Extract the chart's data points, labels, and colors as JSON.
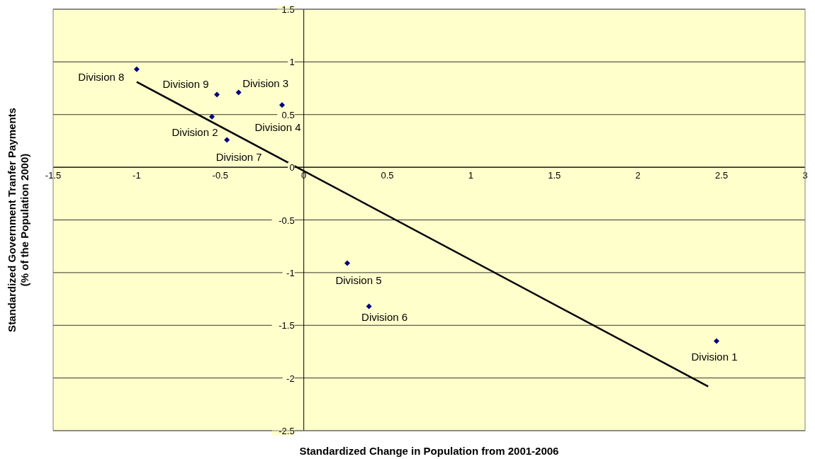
{
  "chart_data": {
    "type": "scatter",
    "xlabel": "Standardized Change in Population from 2001-2006",
    "ylabel": "Standardized Government Tranfer Payments\n(% of the Population 2000)",
    "xlim": [
      -1.5,
      3
    ],
    "xticks": [
      -1.5,
      -1,
      -0.5,
      0,
      0.5,
      1,
      1.5,
      2,
      2.5,
      3
    ],
    "ylim": [
      -2.5,
      1.5
    ],
    "yticks": [
      -2.5,
      -2,
      -1.5,
      -1,
      -0.5,
      0,
      0.5,
      1,
      1.5
    ],
    "grid": "y",
    "legend": false,
    "marker": "diamond",
    "series": [
      {
        "color": "#000080",
        "x": [
          2.47,
          -0.55,
          -0.39,
          -0.13,
          0.26,
          0.39,
          -0.46,
          -1.0,
          -0.52
        ],
        "values": [
          -1.65,
          0.48,
          0.71,
          0.59,
          -0.91,
          -1.32,
          0.26,
          0.93,
          0.69
        ]
      },
      {
        "type": "line",
        "color": "#000000",
        "marker": "none",
        "x": [
          -1.0,
          2.42
        ],
        "values": [
          0.81,
          -2.08
        ]
      }
    ],
    "annotations": [
      {
        "text": "Division 1",
        "x": 2.47,
        "y": -1.65
      },
      {
        "text": "Division 2",
        "x": -0.55,
        "y": 0.48
      },
      {
        "text": "Division 3",
        "x": -0.39,
        "y": 0.71
      },
      {
        "text": "Division 4",
        "x": -0.13,
        "y": 0.59
      },
      {
        "text": "Division 5",
        "x": 0.26,
        "y": -0.91
      },
      {
        "text": "Division 6",
        "x": 0.39,
        "y": -1.32
      },
      {
        "text": "Division 7",
        "x": -0.46,
        "y": 0.26
      },
      {
        "text": "Division 8",
        "x": -1.0,
        "y": 0.93
      },
      {
        "text": "Division 9",
        "x": -0.52,
        "y": 0.69
      }
    ]
  }
}
